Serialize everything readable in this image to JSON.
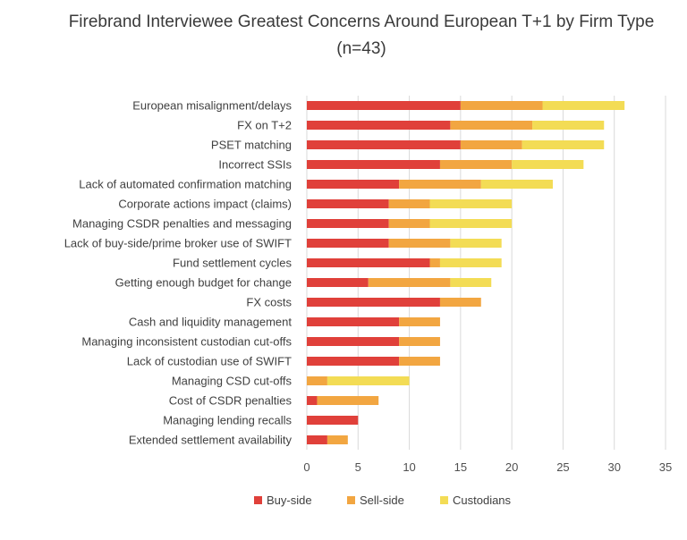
{
  "chart_data": {
    "type": "bar",
    "orientation": "horizontal",
    "stacked": true,
    "title": "Firebrand Interviewee Greatest Concerns Around European T+1 by Firm Type",
    "subtitle": "(n=43)",
    "categories": [
      "European misalignment/delays",
      "FX on T+2",
      "PSET matching",
      "Incorrect SSIs",
      "Lack of automated confirmation matching",
      "Corporate actions impact (claims)",
      "Managing CSDR penalties and messaging",
      "Lack of buy-side/prime broker use of SWIFT",
      "Fund settlement cycles",
      "Getting enough budget for change",
      "FX costs",
      "Cash and liquidity management",
      "Managing inconsistent custodian cut-offs",
      "Lack of custodian use of SWIFT",
      "Managing CSD cut-offs",
      "Cost of CSDR penalties",
      "Managing lending recalls",
      "Extended settlement availability"
    ],
    "series": [
      {
        "name": "Buy-side",
        "color": "#e0403a",
        "values": [
          15,
          14,
          15,
          13,
          9,
          8,
          8,
          8,
          12,
          6,
          13,
          9,
          9,
          9,
          0,
          1,
          5,
          2
        ]
      },
      {
        "name": "Sell-side",
        "color": "#f2a641",
        "values": [
          8,
          8,
          6,
          7,
          8,
          4,
          4,
          6,
          1,
          8,
          4,
          4,
          4,
          4,
          2,
          6,
          0,
          2
        ]
      },
      {
        "name": "Custodians",
        "color": "#f3dc55",
        "values": [
          8,
          7,
          8,
          7,
          7,
          8,
          8,
          5,
          6,
          4,
          0,
          0,
          0,
          0,
          8,
          0,
          0,
          0
        ]
      }
    ],
    "xlim": [
      0,
      35
    ],
    "xticks": [
      "0",
      "5",
      "10",
      "15",
      "20",
      "25",
      "30",
      "35"
    ],
    "grid": "vertical",
    "legend_position": "bottom"
  }
}
